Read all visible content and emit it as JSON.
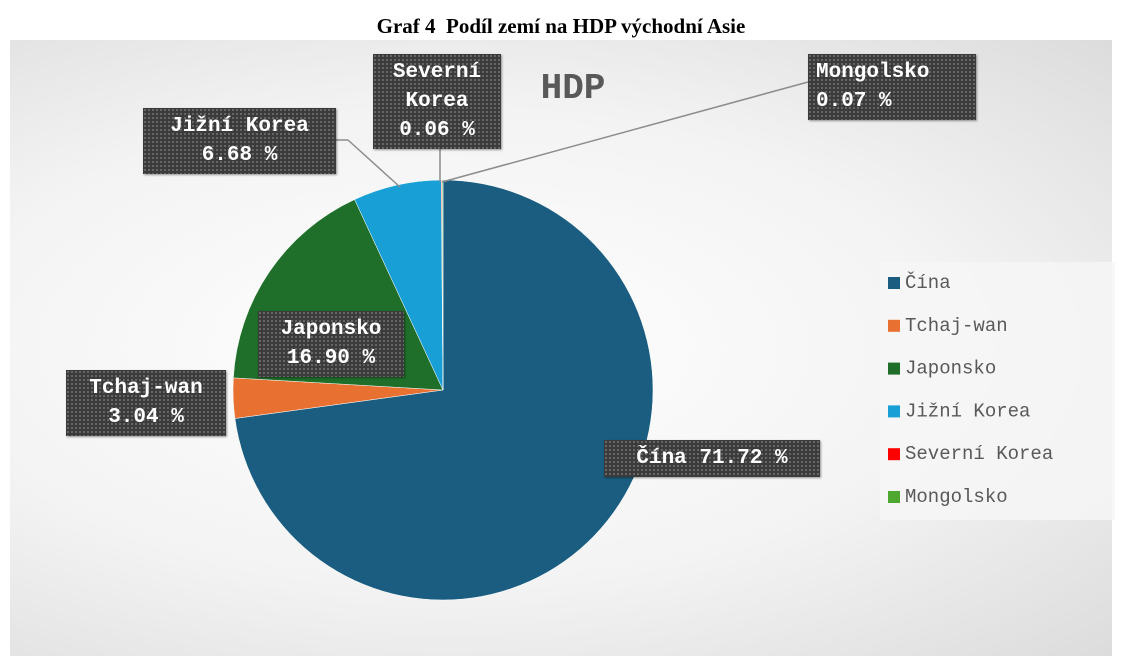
{
  "chart_data": {
    "type": "pie",
    "caption": "Graf 4  Podíl zemí na HDP východní Asie",
    "title": "HDP",
    "categories": [
      "Čína",
      "Tchaj-wan",
      "Japonsko",
      "Jižní Korea",
      "Severní Korea",
      "Mongolsko"
    ],
    "values": [
      71.72,
      3.04,
      16.9,
      6.68,
      0.06,
      0.07
    ],
    "value_labels": [
      "71.72 %",
      "3.04 %",
      "16.90 %",
      "6.68 %",
      "0.06 %",
      "0.07 %"
    ],
    "colors": [
      "#1a5d80",
      "#e87131",
      "#1f6e29",
      "#179fd6",
      "#ff0000",
      "#4ea72e"
    ],
    "legend": "right"
  }
}
